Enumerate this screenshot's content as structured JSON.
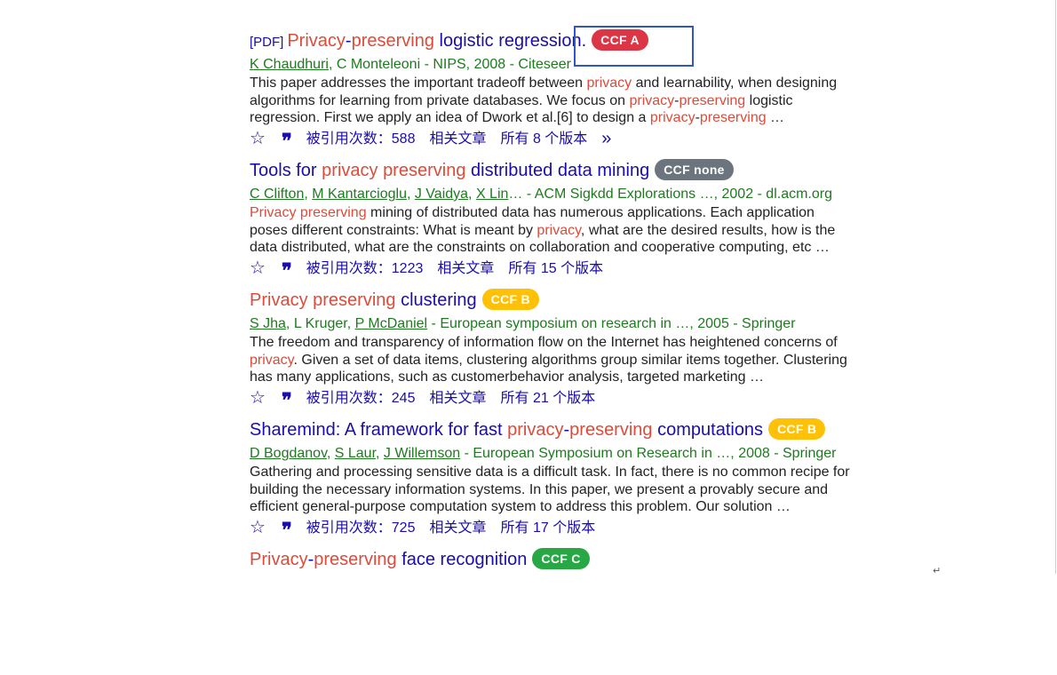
{
  "results": [
    {
      "pdf": "[PDF]",
      "title": [
        [
          "Privacy",
          "hl"
        ],
        [
          "-",
          ""
        ],
        [
          "preserving",
          "hl"
        ],
        [
          " logistic regression.",
          ""
        ]
      ],
      "badge": "CCF A",
      "badge_color": "#dc3545",
      "meta": [
        [
          "K Chaudhuri",
          "a"
        ],
        [
          ", C Monteleoni - NIPS, 2008 - Citeseer",
          ""
        ]
      ],
      "snippet": [
        [
          "This paper addresses the important tradeoff between ",
          ""
        ],
        [
          "privacy",
          "hl"
        ],
        [
          " and learnability, when designing algorithms for learning from private databases. We focus on ",
          ""
        ],
        [
          "privacy",
          "hl"
        ],
        [
          "-",
          ""
        ],
        [
          "preserving",
          "hl"
        ],
        [
          " logistic regression. First we apply an idea of Dwork et al.[6] to design a ",
          ""
        ],
        [
          "privacy",
          "hl"
        ],
        [
          "-",
          ""
        ],
        [
          "preserving",
          "hl"
        ],
        [
          " …",
          ""
        ]
      ],
      "cited": "被引用次数：588",
      "related": "相关文章",
      "versions": "所有 8 个版本",
      "more": true
    },
    {
      "pdf": "",
      "title": [
        [
          "Tools for ",
          ""
        ],
        [
          "privacy preserving",
          "hl"
        ],
        [
          " distributed data mining",
          ""
        ]
      ],
      "badge": "CCF none",
      "badge_color": "#6c757d",
      "meta": [
        [
          "C Clifton",
          "a"
        ],
        [
          ", ",
          ""
        ],
        [
          "M Kantarcioglu",
          "a"
        ],
        [
          ", ",
          ""
        ],
        [
          "J Vaidya",
          "a"
        ],
        [
          ", ",
          ""
        ],
        [
          "X Lin",
          "a"
        ],
        [
          "… - ACM Sigkdd Explorations …, 2002 - dl.acm.org",
          ""
        ]
      ],
      "snippet": [
        [
          "Privacy preserving",
          "hl"
        ],
        [
          " mining of distributed data has numerous applications. Each application poses different constraints: What is meant by ",
          ""
        ],
        [
          "privacy",
          "hl"
        ],
        [
          ", what are the desired results, how is the data distributed, what are the constraints on collaboration and cooperative computing, etc …",
          ""
        ]
      ],
      "cited": "被引用次数：1223",
      "related": "相关文章",
      "versions": "所有 15 个版本",
      "more": false
    },
    {
      "pdf": "",
      "title": [
        [
          "Privacy preserving",
          "hl"
        ],
        [
          " clustering",
          ""
        ]
      ],
      "badge": "CCF B",
      "badge_color": "#ffc107",
      "meta": [
        [
          "S Jha",
          "a"
        ],
        [
          ", L Kruger, ",
          ""
        ],
        [
          "P McDaniel",
          "a"
        ],
        [
          " - European symposium on research in …, 2005 - Springer",
          ""
        ]
      ],
      "snippet": [
        [
          "The freedom and transparency of information flow on the Internet has heightened concerns of ",
          ""
        ],
        [
          "privacy",
          "hl"
        ],
        [
          ". Given a set of data items, clustering algorithms group similar items together. Clustering has many applications, such as customerbehavior analysis, targeted marketing …",
          ""
        ]
      ],
      "cited": "被引用次数：245",
      "related": "相关文章",
      "versions": "所有 21 个版本",
      "more": false
    },
    {
      "pdf": "",
      "title": [
        [
          "Sharemind: A framework for fast ",
          ""
        ],
        [
          "privacy",
          "hl"
        ],
        [
          "-",
          ""
        ],
        [
          "preserving",
          "hl"
        ],
        [
          " computations",
          ""
        ]
      ],
      "badge": "CCF B",
      "badge_color": "#ffc107",
      "meta": [
        [
          "D Bogdanov",
          "a"
        ],
        [
          ", ",
          ""
        ],
        [
          "S Laur",
          "a"
        ],
        [
          ", ",
          ""
        ],
        [
          "J Willemson",
          "a"
        ],
        [
          " - European Symposium on Research in …, 2008 - Springer",
          ""
        ]
      ],
      "snippet": [
        [
          "Gathering and processing sensitive data is a difficult task. In fact, there is no common recipe for building the necessary information systems. In this paper, we present a provably secure and efficient general-purpose computation system to address this problem. Our solution …",
          ""
        ]
      ],
      "cited": "被引用次数：725",
      "related": "相关文章",
      "versions": "所有 17 个版本",
      "more": false
    },
    {
      "pdf": "",
      "title": [
        [
          "Privacy",
          "hl"
        ],
        [
          "-",
          ""
        ],
        [
          "preserving",
          "hl"
        ],
        [
          " face recognition",
          ""
        ]
      ],
      "badge": "CCF C",
      "badge_color": "#28a745",
      "meta": [],
      "snippet": [],
      "cited": "",
      "related": "",
      "versions": "",
      "more": false
    }
  ],
  "icons": {
    "star": "star-icon",
    "quote": "cite-quote-icon",
    "more": "double-chevron-icon"
  },
  "return_mark": "↵"
}
